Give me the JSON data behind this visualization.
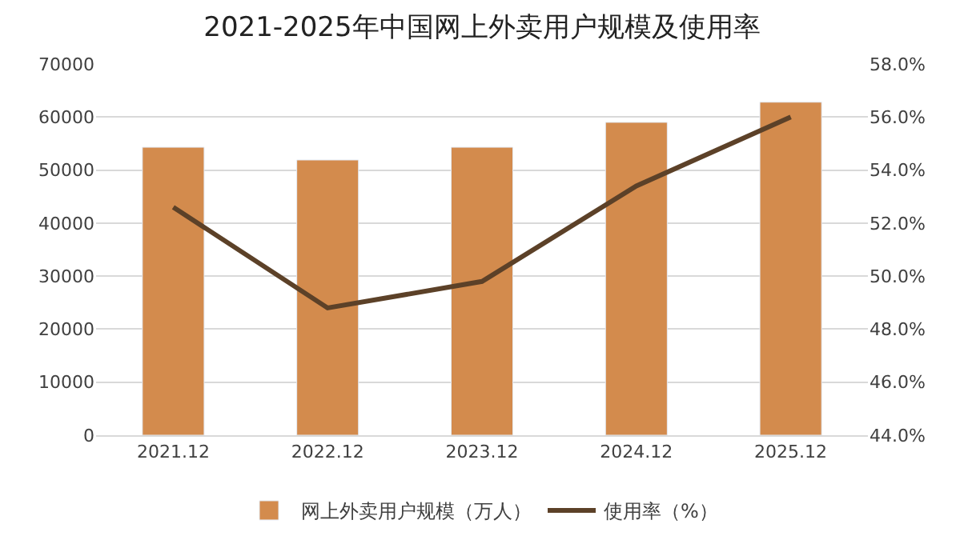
{
  "chart_data": {
    "type": "bar",
    "title": "2021-2025年中国网上外卖用户规模及使用率",
    "categories": [
      "2021.12",
      "2022.12",
      "2023.12",
      "2024.12",
      "2025.12"
    ],
    "series": [
      {
        "name": "网上外卖用户规模（万人）",
        "color": "#d38b4d",
        "values": [
          54300,
          51900,
          54300,
          59000,
          62800
        ]
      },
      {
        "name": "使用率（%）",
        "type": "line",
        "axis": "y2",
        "color": "#5c4128",
        "marker": "none",
        "values": [
          52.6,
          48.8,
          49.8,
          53.4,
          56.0
        ]
      }
    ],
    "ylim": [
      0,
      70000
    ],
    "yticks": [
      0,
      10000,
      20000,
      30000,
      40000,
      50000,
      60000,
      70000
    ],
    "y2lim": [
      44,
      58
    ],
    "y2ticks": [
      {
        "value": 44,
        "label": "44.0%"
      },
      {
        "value": 46,
        "label": "46.0%"
      },
      {
        "value": 48,
        "label": "48.0%"
      },
      {
        "value": 50,
        "label": "50.0%"
      },
      {
        "value": 52,
        "label": "52.0%"
      },
      {
        "value": 54,
        "label": "54.0%"
      },
      {
        "value": 56,
        "label": "56.0%"
      },
      {
        "value": 58,
        "label": "58.0%"
      }
    ],
    "grid": "y",
    "legend": "bottom"
  }
}
